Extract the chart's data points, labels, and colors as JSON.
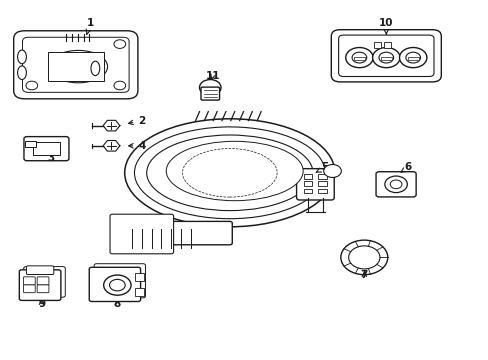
{
  "background_color": "#ffffff",
  "line_color": "#1a1a1a",
  "label_configs": [
    {
      "num": "1",
      "lpos": [
        0.185,
        0.935
      ],
      "apos": [
        0.175,
        0.895
      ]
    },
    {
      "num": "2",
      "lpos": [
        0.29,
        0.665
      ],
      "apos": [
        0.255,
        0.655
      ]
    },
    {
      "num": "3",
      "lpos": [
        0.105,
        0.56
      ],
      "apos": [
        0.105,
        0.585
      ]
    },
    {
      "num": "4",
      "lpos": [
        0.29,
        0.595
      ],
      "apos": [
        0.255,
        0.595
      ]
    },
    {
      "num": "5",
      "lpos": [
        0.665,
        0.535
      ],
      "apos": [
        0.645,
        0.52
      ]
    },
    {
      "num": "6",
      "lpos": [
        0.835,
        0.535
      ],
      "apos": [
        0.818,
        0.52
      ]
    },
    {
      "num": "7",
      "lpos": [
        0.745,
        0.235
      ],
      "apos": [
        0.745,
        0.255
      ]
    },
    {
      "num": "8",
      "lpos": [
        0.24,
        0.155
      ],
      "apos": [
        0.24,
        0.17
      ]
    },
    {
      "num": "9",
      "lpos": [
        0.085,
        0.155
      ],
      "apos": [
        0.085,
        0.17
      ]
    },
    {
      "num": "10",
      "lpos": [
        0.79,
        0.935
      ],
      "apos": [
        0.79,
        0.895
      ]
    },
    {
      "num": "11",
      "lpos": [
        0.435,
        0.79
      ],
      "apos": [
        0.43,
        0.77
      ]
    }
  ]
}
